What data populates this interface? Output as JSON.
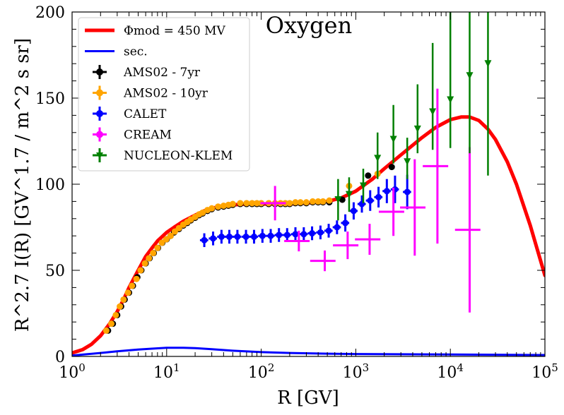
{
  "chart_data": {
    "type": "line+errorbar",
    "title": "Oxygen",
    "xlabel": "R [GV]",
    "ylabel": "R^2.7 I(R) [GV^1.7 / m^2 s sr]",
    "xscale": "log",
    "xlim": [
      1,
      100000
    ],
    "ylim": [
      0,
      200
    ],
    "x_tick_labels": [
      "10^0",
      "10^1",
      "10^2",
      "10^3",
      "10^4",
      "10^5"
    ],
    "y_tick_labels": [
      "0",
      "50",
      "100",
      "150",
      "200"
    ],
    "legend_position": "top-left",
    "legend": [
      {
        "name": "Φmod = 450 MV",
        "color": "#ff0000",
        "kind": "line"
      },
      {
        "name": "sec.",
        "color": "#0000ff",
        "kind": "line"
      },
      {
        "name": "AMS02 - 7yr",
        "color": "#000000",
        "kind": "marker"
      },
      {
        "name": "AMS02 - 10yr",
        "color": "#ffa500",
        "kind": "marker"
      },
      {
        "name": "CALET",
        "color": "#0000ff",
        "kind": "marker"
      },
      {
        "name": "CREAM",
        "color": "#ff00ff",
        "kind": "marker"
      },
      {
        "name": "NUCLEON-KLEM",
        "color": "#008000",
        "kind": "marker"
      }
    ],
    "series": [
      {
        "name": "Φmod = 450 MV",
        "style": "line",
        "color": "#ff0000",
        "x": [
          1,
          1.3,
          1.6,
          2,
          2.5,
          3,
          3.5,
          4,
          5,
          6,
          7,
          8,
          10,
          12,
          15,
          20,
          25,
          30,
          40,
          50,
          70,
          100,
          150,
          200,
          300,
          500,
          700,
          1000,
          1500,
          2000,
          3000,
          5000,
          7000,
          10000,
          13000,
          16000,
          20000,
          25000,
          30000,
          40000,
          50000,
          70000,
          100000
        ],
        "y": [
          2,
          4,
          7,
          12,
          19,
          26,
          33,
          40,
          50,
          58,
          63,
          67,
          72,
          75,
          78.5,
          82,
          84.5,
          86,
          87.5,
          88,
          88.5,
          88.5,
          88.5,
          88.5,
          89,
          90,
          92,
          96,
          103,
          109,
          117,
          127,
          133,
          137.5,
          139,
          139,
          137,
          132,
          126,
          113,
          100,
          76,
          47
        ]
      },
      {
        "name": "sec.",
        "style": "line",
        "color": "#0000ff",
        "x": [
          1,
          2,
          3,
          5,
          7,
          10,
          15,
          20,
          30,
          50,
          100,
          200,
          500,
          1000,
          10000,
          100000
        ],
        "y": [
          0.5,
          2,
          3,
          4,
          4.5,
          5,
          5,
          4.8,
          4.2,
          3.3,
          2.5,
          2,
          1.6,
          1.4,
          1.1,
          0.8
        ]
      },
      {
        "name": "AMS02 - 7yr",
        "style": "marker",
        "color": "#000000",
        "x": [
          2.4,
          2.7,
          3.0,
          3.3,
          3.6,
          4.0,
          4.4,
          4.9,
          5.4,
          6.0,
          6.6,
          7.3,
          8.1,
          9.0,
          10,
          11,
          12,
          13.5,
          15,
          16.5,
          18,
          20,
          22,
          24,
          27,
          30,
          35,
          40,
          45,
          50,
          60,
          70,
          80,
          90,
          100,
          120,
          140,
          160,
          180,
          200,
          230,
          260,
          300,
          350,
          400,
          450,
          525,
          720,
          1350,
          2400
        ],
        "y": [
          15,
          19,
          24,
          29,
          33,
          37,
          41,
          46,
          50,
          54,
          57,
          60,
          63,
          66,
          68,
          70,
          72,
          74,
          76,
          77.5,
          79,
          80.5,
          82,
          83,
          84.5,
          85.5,
          86.5,
          87,
          87.5,
          88,
          88.5,
          88.5,
          88.5,
          88.5,
          88.5,
          88.5,
          88.5,
          88.5,
          88.5,
          88.5,
          89,
          89,
          89,
          89.5,
          89.5,
          89.5,
          89.5,
          91,
          105,
          110
        ],
        "xerr_frac": 0.07,
        "yerr": 1.5
      },
      {
        "name": "AMS02 - 10yr",
        "style": "marker",
        "color": "#ffa500",
        "x": [
          2.3,
          2.6,
          2.9,
          3.2,
          3.5,
          3.9,
          4.3,
          4.8,
          5.3,
          5.9,
          6.5,
          7.2,
          8.0,
          8.9,
          9.9,
          11,
          12.2,
          13.5,
          15,
          16.5,
          18,
          20,
          22,
          24,
          27,
          30,
          35,
          40,
          45,
          50,
          60,
          70,
          80,
          90,
          100,
          120,
          140,
          160,
          180,
          200,
          230,
          260,
          300,
          350,
          400,
          450,
          525,
          850,
          1700
        ],
        "y": [
          15,
          19,
          24,
          29,
          33,
          37,
          41,
          45,
          50,
          54,
          57,
          60,
          63,
          66,
          68,
          70,
          72.5,
          74.5,
          76.5,
          78,
          79.5,
          81,
          82.5,
          83.5,
          85,
          86,
          87,
          87.5,
          88,
          88.5,
          89,
          89,
          89,
          89,
          89,
          89,
          89,
          89,
          89,
          89,
          89.5,
          89.5,
          89.5,
          90,
          90,
          90,
          90.5,
          99,
          106
        ],
        "xerr_frac": 0.07,
        "yerr": 1.5
      },
      {
        "name": "CALET",
        "style": "marker",
        "color": "#0000ff",
        "x": [
          25,
          31,
          38,
          46,
          56,
          69,
          84,
          103,
          126,
          154,
          188,
          230,
          282,
          345,
          423,
          517,
          633,
          775,
          950,
          1160,
          1420,
          1740,
          2130,
          2600,
          3500
        ],
        "y": [
          67.5,
          68.5,
          69.5,
          69.5,
          69.5,
          69.5,
          69.5,
          70,
          70,
          70.5,
          70.5,
          71,
          71,
          71.5,
          72,
          73,
          75,
          77.5,
          84.5,
          88.5,
          90.5,
          92.5,
          96,
          97,
          95.5
        ],
        "xerr_frac": 0.1,
        "yerr": [
          4,
          4,
          4,
          4,
          4,
          4,
          4,
          4,
          4,
          4,
          4,
          4,
          4,
          4,
          4,
          4,
          4,
          5,
          5,
          5,
          6,
          6,
          7,
          8,
          10
        ]
      },
      {
        "name": "CREAM",
        "style": "marker",
        "color": "#ff00ff",
        "x": [
          140,
          250,
          470,
          820,
          1400,
          2500,
          4200,
          7300,
          16000
        ],
        "y": [
          89,
          67,
          55.5,
          64.5,
          68,
          84,
          86.5,
          110.5,
          73.5
        ],
        "xerr_frac": 0.3,
        "yerr": [
          10,
          6,
          6,
          8,
          9,
          14,
          28,
          45,
          48
        ]
      },
      {
        "name": "NUCLEON-KLEM",
        "style": "triangle",
        "color": "#008000",
        "x": [
          650,
          850,
          1200,
          1700,
          2500,
          3500,
          4500,
          6500,
          10000,
          16000,
          25000
        ],
        "y": [
          91,
          94,
          99,
          115,
          126,
          113,
          132,
          142,
          149,
          163,
          170
        ],
        "yerr_lo": [
          12,
          10,
          10,
          12,
          14,
          10,
          14,
          22,
          28,
          45,
          65
        ],
        "yerr_hi": [
          12,
          10,
          10,
          15,
          20,
          14,
          26,
          40,
          56,
          75,
          60
        ]
      }
    ]
  }
}
